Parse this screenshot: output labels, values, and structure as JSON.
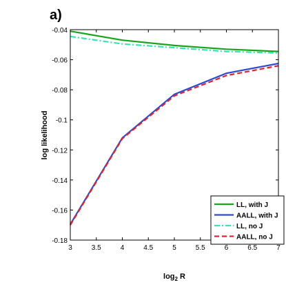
{
  "chart_data": {
    "type": "line",
    "panel_label": "a)",
    "title": "",
    "xlabel": "log",
    "xlabel_sub": "2",
    "xlabel_tail": " R",
    "ylabel": "log likelihood",
    "xlim": [
      3,
      7
    ],
    "ylim": [
      -0.18,
      -0.04
    ],
    "xticks": [
      3,
      3.5,
      4,
      4.5,
      5,
      5.5,
      6,
      6.5,
      7
    ],
    "yticks": [
      -0.18,
      -0.16,
      -0.14,
      -0.12,
      -0.1,
      -0.08,
      -0.06,
      -0.04
    ],
    "xtick_labels": [
      "3",
      "3.5",
      "4",
      "4.5",
      "5",
      "5.5",
      "6",
      "6.5",
      "7"
    ],
    "ytick_labels": [
      "-0.18",
      "-0.16",
      "-0.14",
      "-0.12",
      "-0.1",
      "-0.08",
      "-0.06",
      "-0.04"
    ],
    "x": [
      3,
      4,
      5,
      6,
      7
    ],
    "grid": false,
    "legend_position": "bottom-right",
    "series": [
      {
        "name": "LL, with J",
        "values": [
          -0.041,
          -0.047,
          -0.0505,
          -0.053,
          -0.0545
        ],
        "color": "#1aa31a",
        "dash": "solid"
      },
      {
        "name": "AALL, with J",
        "values": [
          -0.1695,
          -0.112,
          -0.083,
          -0.069,
          -0.0625
        ],
        "color": "#2a4bd7",
        "dash": "solid"
      },
      {
        "name": "LL, no J",
        "values": [
          -0.0445,
          -0.0495,
          -0.052,
          -0.0545,
          -0.0555
        ],
        "color": "#33e6b0",
        "dash": "dashdot"
      },
      {
        "name": "AALL, no J",
        "values": [
          -0.17,
          -0.1125,
          -0.084,
          -0.0705,
          -0.064
        ],
        "color": "#e8202a",
        "dash": "dashed"
      }
    ]
  }
}
